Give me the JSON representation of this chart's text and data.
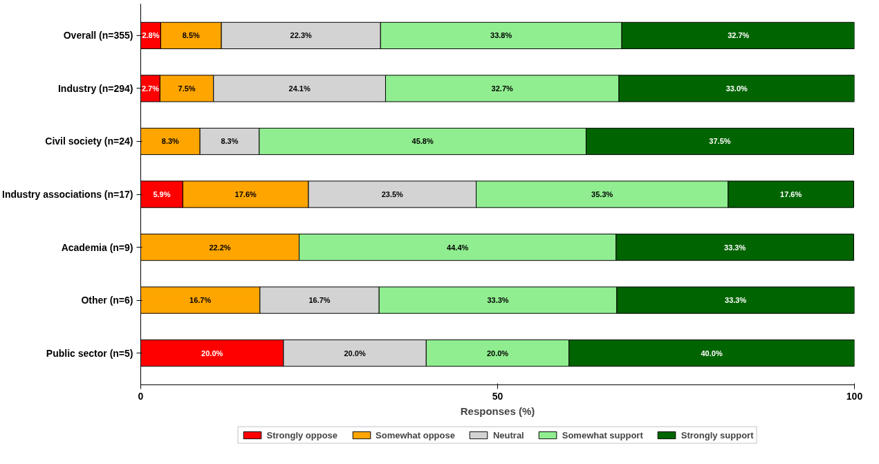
{
  "chart_data": {
    "type": "bar",
    "orientation": "horizontal",
    "stacked": true,
    "xlabel": "Responses (%)",
    "xlim": [
      0,
      100
    ],
    "xticks": [
      0,
      50,
      100
    ],
    "grid": false,
    "legend": "bottom",
    "categories": [
      "Overall (n=355)",
      "Industry (n=294)",
      "Civil society (n=24)",
      "Industry associations (n=17)",
      "Academia (n=9)",
      "Other (n=6)",
      "Public sector (n=5)"
    ],
    "series": [
      {
        "name": "Strongly oppose",
        "color": "#ff0000",
        "values": [
          2.8,
          2.7,
          null,
          5.9,
          null,
          null,
          20.0
        ],
        "value_labels": [
          "2.8%",
          "2.7%",
          null,
          "5.9%",
          null,
          null,
          "20.0%"
        ]
      },
      {
        "name": "Somewhat oppose",
        "color": "#ffa500",
        "values": [
          8.5,
          7.5,
          8.3,
          17.6,
          22.2,
          16.7,
          null
        ],
        "value_labels": [
          "8.5%",
          "7.5%",
          "8.3%",
          "17.6%",
          "22.2%",
          "16.7%",
          null
        ]
      },
      {
        "name": "Neutral",
        "color": "#d3d3d3",
        "values": [
          22.3,
          24.1,
          8.3,
          23.5,
          null,
          16.7,
          20.0
        ],
        "value_labels": [
          "22.3%",
          "24.1%",
          "8.3%",
          "23.5%",
          null,
          "16.7%",
          "20.0%"
        ]
      },
      {
        "name": "Somewhat support",
        "color": "#90ee90",
        "values": [
          33.8,
          32.7,
          45.8,
          35.3,
          44.4,
          33.3,
          20.0
        ],
        "value_labels": [
          "33.8%",
          "32.7%",
          "45.8%",
          "35.3%",
          "44.4%",
          "33.3%",
          "20.0%"
        ]
      },
      {
        "name": "Strongly support",
        "color": "#006400",
        "values": [
          32.7,
          33.0,
          37.5,
          17.6,
          33.3,
          33.3,
          40.0
        ],
        "value_labels": [
          "32.7%",
          "33.0%",
          "37.5%",
          "17.6%",
          "33.3%",
          "33.3%",
          "40.0%"
        ]
      }
    ]
  }
}
